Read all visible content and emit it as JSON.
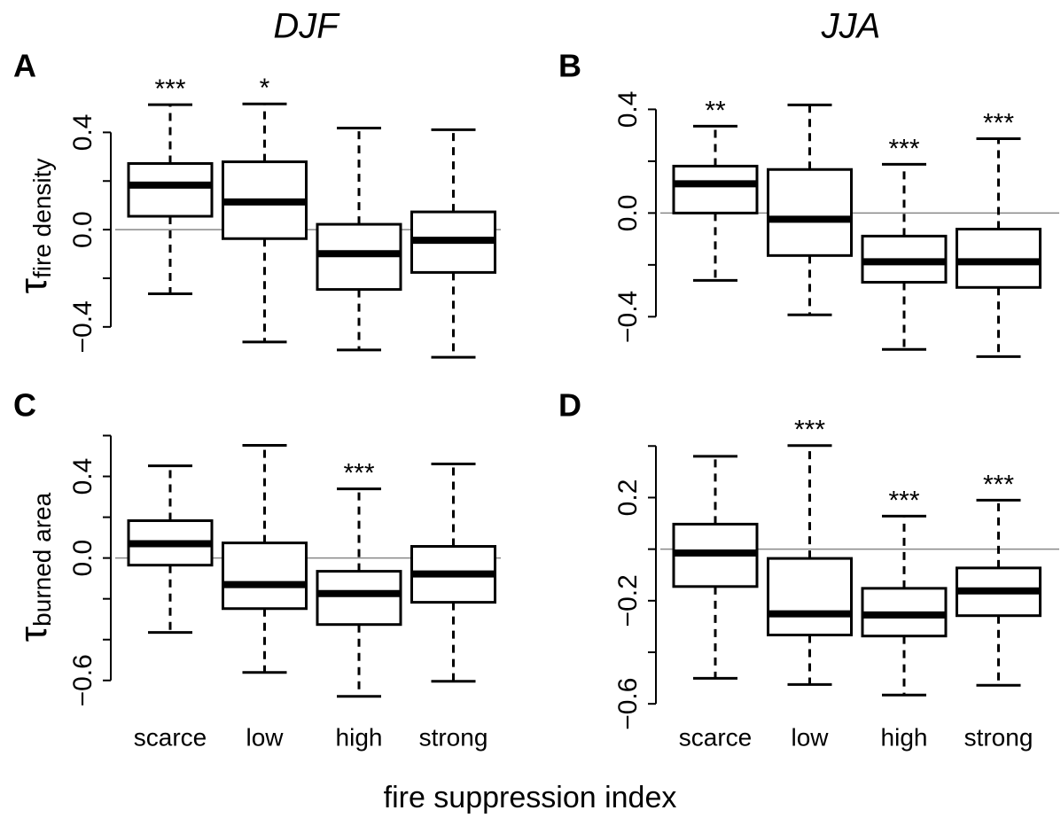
{
  "chart_data": [
    {
      "type": "box",
      "title": "A",
      "column_title": "DJF",
      "ylabel": {
        "symbol": "τ",
        "subscript": "fire density"
      },
      "ylim": [
        -0.55,
        0.58
      ],
      "yticks": [
        {
          "value": -0.4,
          "label": "−0.4"
        },
        {
          "value": 0,
          "label": "0.0"
        },
        0.4
      ],
      "minor_yticks": [
        -0.2,
        0.2
      ],
      "hline": 0,
      "boxes": [
        {
          "whislo": -0.264,
          "q1": 0.055,
          "med": 0.183,
          "q3": 0.272,
          "whishi": 0.514
        },
        {
          "whislo": -0.462,
          "q1": -0.037,
          "med": 0.114,
          "q3": 0.279,
          "whishi": 0.517
        },
        {
          "whislo": -0.495,
          "q1": -0.246,
          "med": -0.099,
          "q3": 0.022,
          "whishi": 0.418
        },
        {
          "whislo": -0.525,
          "q1": -0.176,
          "med": -0.044,
          "q3": 0.073,
          "whishi": 0.411
        }
      ],
      "annotations": [
        "***",
        "*",
        null,
        null
      ]
    },
    {
      "type": "box",
      "title": "B",
      "column_title": "JJA",
      "ylim": [
        -0.58,
        0.48
      ],
      "yticks": [
        {
          "value": -0.4,
          "label": "−0.4"
        },
        {
          "value": 0,
          "label": "0.0"
        },
        0.4
      ],
      "minor_yticks": [
        -0.2,
        0.2
      ],
      "hline": 0,
      "boxes": [
        {
          "whislo": -0.26,
          "q1": 0.0,
          "med": 0.113,
          "q3": 0.181,
          "whishi": 0.335
        },
        {
          "whislo": -0.393,
          "q1": -0.164,
          "med": -0.024,
          "q3": 0.168,
          "whishi": 0.417
        },
        {
          "whislo": -0.526,
          "q1": -0.267,
          "med": -0.188,
          "q3": -0.089,
          "whishi": 0.188
        },
        {
          "whislo": -0.554,
          "q1": -0.287,
          "med": -0.188,
          "q3": -0.062,
          "whishi": 0.287
        }
      ],
      "annotations": [
        "**",
        null,
        "***",
        "***"
      ]
    },
    {
      "type": "box",
      "title": "C",
      "ylabel": {
        "symbol": "τ",
        "subscript": "burned area"
      },
      "categories": [
        "scarce",
        "low",
        "high",
        "strong"
      ],
      "ylim": [
        -0.74,
        0.65
      ],
      "yticks": [
        {
          "value": -0.6,
          "label": "−0.6"
        },
        {
          "value": 0,
          "label": "0.0"
        },
        0.4
      ],
      "minor_yticks": [
        -0.4,
        -0.2,
        0.2,
        0.6
      ],
      "hline": 0,
      "boxes": [
        {
          "whislo": -0.365,
          "q1": -0.035,
          "med": 0.07,
          "q3": 0.183,
          "whishi": 0.452
        },
        {
          "whislo": -0.561,
          "q1": -0.248,
          "med": -0.13,
          "q3": 0.074,
          "whishi": 0.552
        },
        {
          "whislo": -0.678,
          "q1": -0.326,
          "med": -0.174,
          "q3": -0.065,
          "whishi": 0.339
        },
        {
          "whislo": -0.604,
          "q1": -0.217,
          "med": -0.078,
          "q3": 0.057,
          "whishi": 0.461
        }
      ],
      "annotations": [
        null,
        null,
        "***",
        null
      ]
    },
    {
      "type": "box",
      "title": "D",
      "categories": [
        "scarce",
        "low",
        "high",
        "strong"
      ],
      "ylim": [
        -0.62,
        0.48
      ],
      "yticks": [
        {
          "value": -0.6,
          "label": "−0.6"
        },
        {
          "value": -0.2,
          "label": "−0.2"
        },
        0.2
      ],
      "minor_yticks": [
        -0.4,
        0,
        0.4
      ],
      "hline": 0,
      "boxes": [
        {
          "whislo": -0.501,
          "q1": -0.145,
          "med": -0.015,
          "q3": 0.097,
          "whishi": 0.36
        },
        {
          "whislo": -0.525,
          "q1": -0.333,
          "med": -0.251,
          "q3": -0.036,
          "whishi": 0.402
        },
        {
          "whislo": -0.566,
          "q1": -0.337,
          "med": -0.255,
          "q3": -0.152,
          "whishi": 0.128
        },
        {
          "whislo": -0.528,
          "q1": -0.258,
          "med": -0.162,
          "q3": -0.073,
          "whishi": 0.19
        }
      ],
      "annotations": [
        null,
        "***",
        "***",
        "***"
      ]
    }
  ],
  "xlabel": "fire suppression index"
}
